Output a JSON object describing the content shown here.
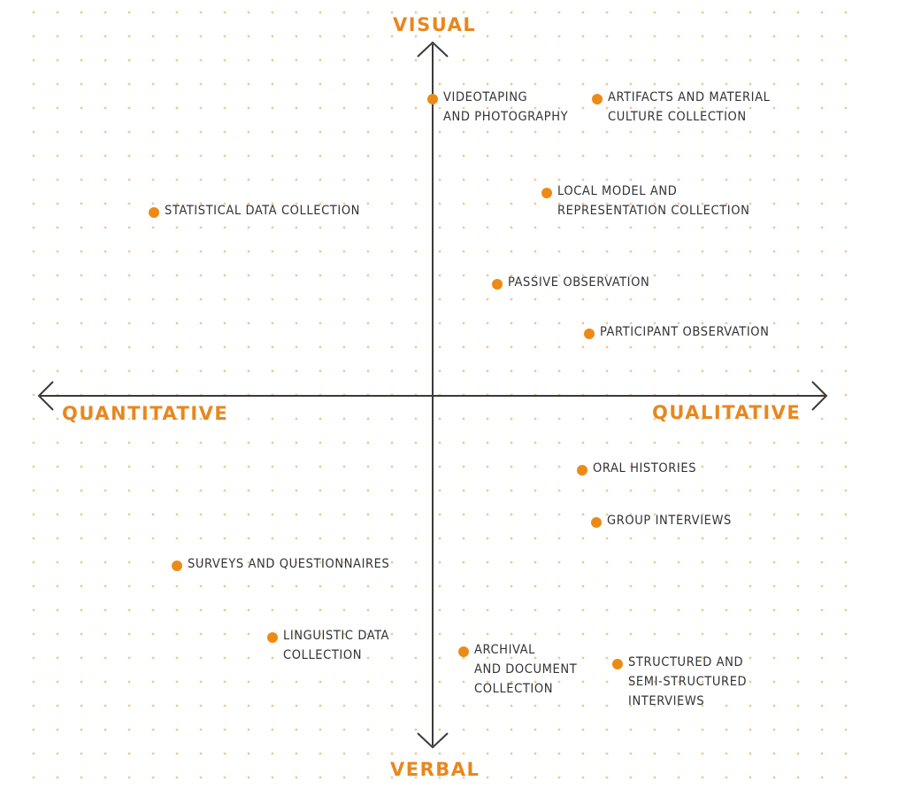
{
  "axes": {
    "top": "VISUAL",
    "bottom": "VERBAL",
    "left": "QUANTITATIVE",
    "right": "QUALITATIVE"
  },
  "colors": {
    "accent": "#e8871e",
    "dot": "#ec8a17",
    "axis": "#3a3a3a",
    "text": "#333333",
    "grid": "#f0c98a"
  },
  "methods": [
    {
      "id": "videotaping",
      "lines": [
        "VIDEOTAPING",
        "AND PHOTOGRAPHY"
      ]
    },
    {
      "id": "artifacts",
      "lines": [
        "ARTIFACTS AND MATERIAL",
        "CULTURE COLLECTION"
      ]
    },
    {
      "id": "local-model",
      "lines": [
        "LOCAL MODEL AND",
        "REPRESENTATION COLLECTION"
      ]
    },
    {
      "id": "statistical",
      "lines": [
        "STATISTICAL DATA COLLECTION"
      ]
    },
    {
      "id": "passive",
      "lines": [
        "PASSIVE OBSERVATION"
      ]
    },
    {
      "id": "participant",
      "lines": [
        "PARTICIPANT OBSERVATION"
      ]
    },
    {
      "id": "oral",
      "lines": [
        "ORAL HISTORIES"
      ]
    },
    {
      "id": "group",
      "lines": [
        "GROUP INTERVIEWS"
      ]
    },
    {
      "id": "surveys",
      "lines": [
        "SURVEYS AND QUESTIONNAIRES"
      ]
    },
    {
      "id": "linguistic",
      "lines": [
        "LINGUISTIC DATA",
        "COLLECTION"
      ]
    },
    {
      "id": "archival",
      "lines": [
        "ARCHIVAL",
        "AND DOCUMENT",
        "COLLECTION"
      ]
    },
    {
      "id": "structured",
      "lines": [
        "STRUCTURED AND",
        "SEMI-STRUCTURED",
        "INTERVIEWS"
      ]
    }
  ]
}
